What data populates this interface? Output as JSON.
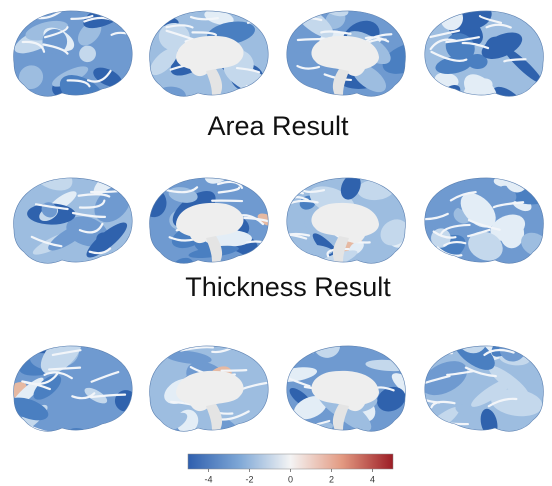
{
  "panels": [
    {
      "title": "Area Result"
    },
    {
      "title": "Thickness Result"
    }
  ],
  "colorbar": {
    "lim": [
      -5,
      5
    ],
    "ticks": [
      -4,
      -2,
      0,
      2,
      4
    ]
  }
}
